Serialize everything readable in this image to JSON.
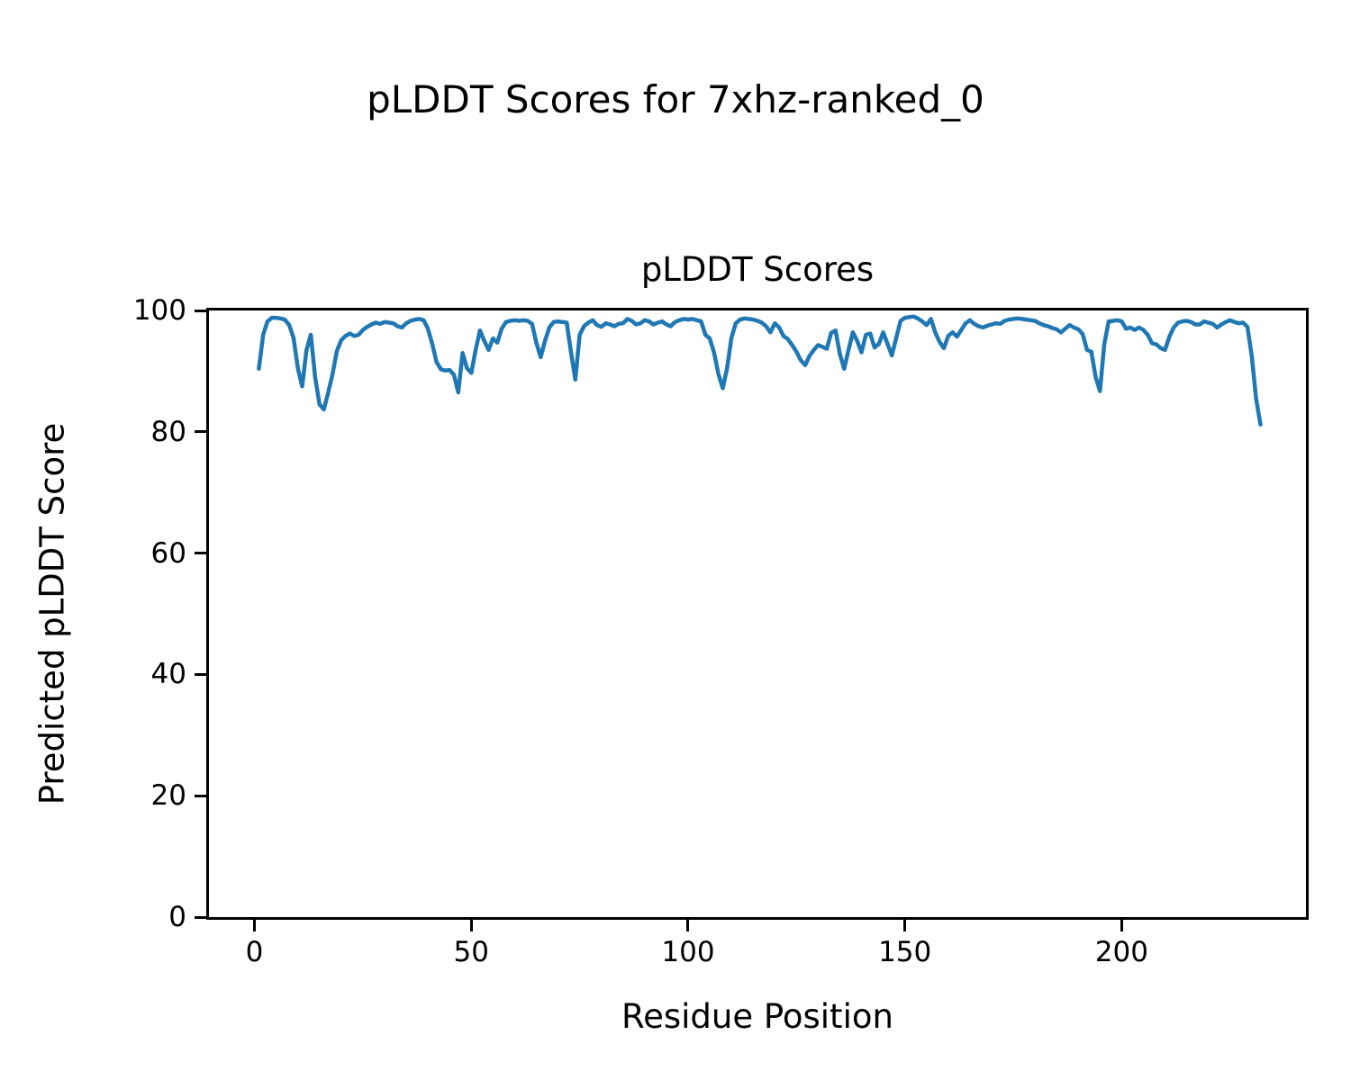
{
  "figure": {
    "suptitle": "pLDDT Scores for 7xhz-ranked_0",
    "background_color": "#ffffff",
    "text_color": "#000000"
  },
  "chart_data": {
    "type": "line",
    "title": "pLDDT Scores",
    "xlabel": "Residue Position",
    "ylabel": "Predicted pLDDT Score",
    "xlim": [
      -10.5,
      242.5
    ],
    "ylim": [
      0,
      100
    ],
    "xticks": [
      0,
      50,
      100,
      150,
      200
    ],
    "yticks": [
      0,
      20,
      40,
      60,
      80,
      100
    ],
    "grid": false,
    "legend": "none",
    "line_color": "#1f77b4",
    "line_width": 4.5,
    "series": [
      {
        "name": "pLDDT",
        "points": [
          [
            1,
            90.4
          ],
          [
            2,
            96.0
          ],
          [
            3,
            98.2
          ],
          [
            4,
            98.8
          ],
          [
            5,
            98.8
          ],
          [
            6,
            98.7
          ],
          [
            7,
            98.5
          ],
          [
            8,
            97.6
          ],
          [
            9,
            95.5
          ],
          [
            10,
            90.5
          ],
          [
            11,
            87.5
          ],
          [
            12,
            93.5
          ],
          [
            13,
            96.0
          ],
          [
            14,
            89.0
          ],
          [
            15,
            84.5
          ],
          [
            16,
            83.7
          ],
          [
            17,
            86.5
          ],
          [
            18,
            89.5
          ],
          [
            19,
            93.3
          ],
          [
            20,
            95.1
          ],
          [
            21,
            95.8
          ],
          [
            22,
            96.2
          ],
          [
            23,
            95.8
          ],
          [
            24,
            96.0
          ],
          [
            25,
            96.8
          ],
          [
            26,
            97.3
          ],
          [
            27,
            97.7
          ],
          [
            28,
            98.0
          ],
          [
            29,
            97.8
          ],
          [
            30,
            98.1
          ],
          [
            31,
            98.0
          ],
          [
            32,
            97.9
          ],
          [
            33,
            97.4
          ],
          [
            34,
            97.2
          ],
          [
            35,
            97.9
          ],
          [
            36,
            98.3
          ],
          [
            37,
            98.5
          ],
          [
            38,
            98.6
          ],
          [
            39,
            98.4
          ],
          [
            40,
            97.0
          ],
          [
            41,
            94.5
          ],
          [
            42,
            91.5
          ],
          [
            43,
            90.3
          ],
          [
            44,
            90.1
          ],
          [
            45,
            90.2
          ],
          [
            46,
            89.4
          ],
          [
            47,
            86.5
          ],
          [
            48,
            93.0
          ],
          [
            49,
            90.5
          ],
          [
            50,
            89.7
          ],
          [
            51,
            93.5
          ],
          [
            52,
            96.7
          ],
          [
            53,
            95.0
          ],
          [
            54,
            93.5
          ],
          [
            55,
            95.4
          ],
          [
            56,
            94.7
          ],
          [
            57,
            97.0
          ],
          [
            58,
            98.1
          ],
          [
            59,
            98.3
          ],
          [
            60,
            98.4
          ],
          [
            61,
            98.3
          ],
          [
            62,
            98.4
          ],
          [
            63,
            98.3
          ],
          [
            64,
            97.8
          ],
          [
            65,
            94.7
          ],
          [
            66,
            92.3
          ],
          [
            67,
            95.0
          ],
          [
            68,
            97.2
          ],
          [
            69,
            98.1
          ],
          [
            70,
            98.2
          ],
          [
            71,
            98.1
          ],
          [
            72,
            98.0
          ],
          [
            73,
            93.1
          ],
          [
            74,
            88.6
          ],
          [
            75,
            96.0
          ],
          [
            76,
            97.4
          ],
          [
            77,
            98.0
          ],
          [
            78,
            98.4
          ],
          [
            79,
            97.6
          ],
          [
            80,
            97.3
          ],
          [
            81,
            97.9
          ],
          [
            82,
            97.7
          ],
          [
            83,
            97.4
          ],
          [
            84,
            97.8
          ],
          [
            85,
            97.9
          ],
          [
            86,
            98.6
          ],
          [
            87,
            98.3
          ],
          [
            88,
            97.7
          ],
          [
            89,
            97.9
          ],
          [
            90,
            98.4
          ],
          [
            91,
            98.2
          ],
          [
            92,
            97.7
          ],
          [
            93,
            98.0
          ],
          [
            94,
            98.2
          ],
          [
            95,
            97.7
          ],
          [
            96,
            97.4
          ],
          [
            97,
            98.1
          ],
          [
            98,
            98.4
          ],
          [
            99,
            98.6
          ],
          [
            100,
            98.5
          ],
          [
            101,
            98.6
          ],
          [
            102,
            98.4
          ],
          [
            103,
            98.2
          ],
          [
            104,
            96.0
          ],
          [
            105,
            95.4
          ],
          [
            106,
            93.0
          ],
          [
            107,
            89.5
          ],
          [
            108,
            87.2
          ],
          [
            109,
            90.5
          ],
          [
            110,
            95.5
          ],
          [
            111,
            97.9
          ],
          [
            112,
            98.5
          ],
          [
            113,
            98.7
          ],
          [
            114,
            98.6
          ],
          [
            115,
            98.5
          ],
          [
            116,
            98.3
          ],
          [
            117,
            98.0
          ],
          [
            118,
            97.4
          ],
          [
            119,
            96.4
          ],
          [
            120,
            97.9
          ],
          [
            121,
            97.2
          ],
          [
            122,
            95.8
          ],
          [
            123,
            95.3
          ],
          [
            124,
            94.3
          ],
          [
            125,
            93.2
          ],
          [
            126,
            91.8
          ],
          [
            127,
            91.0
          ],
          [
            128,
            92.5
          ],
          [
            129,
            93.5
          ],
          [
            130,
            94.3
          ],
          [
            131,
            94.0
          ],
          [
            132,
            93.7
          ],
          [
            133,
            96.3
          ],
          [
            134,
            96.7
          ],
          [
            135,
            92.8
          ],
          [
            136,
            90.4
          ],
          [
            137,
            93.5
          ],
          [
            138,
            96.4
          ],
          [
            139,
            95.0
          ],
          [
            140,
            93.1
          ],
          [
            141,
            96.0
          ],
          [
            142,
            96.2
          ],
          [
            143,
            93.9
          ],
          [
            144,
            94.5
          ],
          [
            145,
            96.4
          ],
          [
            146,
            94.5
          ],
          [
            147,
            92.6
          ],
          [
            148,
            95.5
          ],
          [
            149,
            98.3
          ],
          [
            150,
            98.8
          ],
          [
            151,
            98.9
          ],
          [
            152,
            99.0
          ],
          [
            153,
            98.7
          ],
          [
            154,
            98.2
          ],
          [
            155,
            97.6
          ],
          [
            156,
            98.6
          ],
          [
            157,
            96.4
          ],
          [
            158,
            94.8
          ],
          [
            159,
            93.8
          ],
          [
            160,
            95.8
          ],
          [
            161,
            96.4
          ],
          [
            162,
            95.7
          ],
          [
            163,
            96.8
          ],
          [
            164,
            97.9
          ],
          [
            165,
            98.4
          ],
          [
            166,
            97.8
          ],
          [
            167,
            97.4
          ],
          [
            168,
            97.2
          ],
          [
            169,
            97.5
          ],
          [
            170,
            97.7
          ],
          [
            171,
            97.9
          ],
          [
            172,
            97.8
          ],
          [
            173,
            98.3
          ],
          [
            174,
            98.5
          ],
          [
            175,
            98.6
          ],
          [
            176,
            98.7
          ],
          [
            177,
            98.6
          ],
          [
            178,
            98.5
          ],
          [
            179,
            98.4
          ],
          [
            180,
            98.3
          ],
          [
            181,
            97.9
          ],
          [
            182,
            97.6
          ],
          [
            183,
            97.4
          ],
          [
            184,
            97.1
          ],
          [
            185,
            96.9
          ],
          [
            186,
            96.4
          ],
          [
            187,
            97.0
          ],
          [
            188,
            97.6
          ],
          [
            189,
            97.2
          ],
          [
            190,
            96.9
          ],
          [
            191,
            96.1
          ],
          [
            192,
            93.5
          ],
          [
            193,
            93.2
          ],
          [
            194,
            89.0
          ],
          [
            195,
            86.7
          ],
          [
            196,
            94.5
          ],
          [
            197,
            98.2
          ],
          [
            198,
            98.3
          ],
          [
            199,
            98.4
          ],
          [
            200,
            98.2
          ],
          [
            201,
            97.0
          ],
          [
            202,
            97.2
          ],
          [
            203,
            96.8
          ],
          [
            204,
            97.2
          ],
          [
            205,
            96.8
          ],
          [
            206,
            96.0
          ],
          [
            207,
            94.6
          ],
          [
            208,
            94.4
          ],
          [
            209,
            93.8
          ],
          [
            210,
            93.5
          ],
          [
            211,
            95.7
          ],
          [
            212,
            97.2
          ],
          [
            213,
            98.0
          ],
          [
            214,
            98.2
          ],
          [
            215,
            98.3
          ],
          [
            216,
            98.1
          ],
          [
            217,
            97.7
          ],
          [
            218,
            97.7
          ],
          [
            219,
            98.2
          ],
          [
            220,
            98.0
          ],
          [
            221,
            97.8
          ],
          [
            222,
            97.2
          ],
          [
            223,
            97.7
          ],
          [
            224,
            98.1
          ],
          [
            225,
            98.4
          ],
          [
            226,
            98.1
          ],
          [
            227,
            97.9
          ],
          [
            228,
            98.0
          ],
          [
            229,
            97.3
          ],
          [
            230,
            92.5
          ],
          [
            231,
            85.5
          ],
          [
            232,
            81.2
          ]
        ]
      }
    ]
  }
}
